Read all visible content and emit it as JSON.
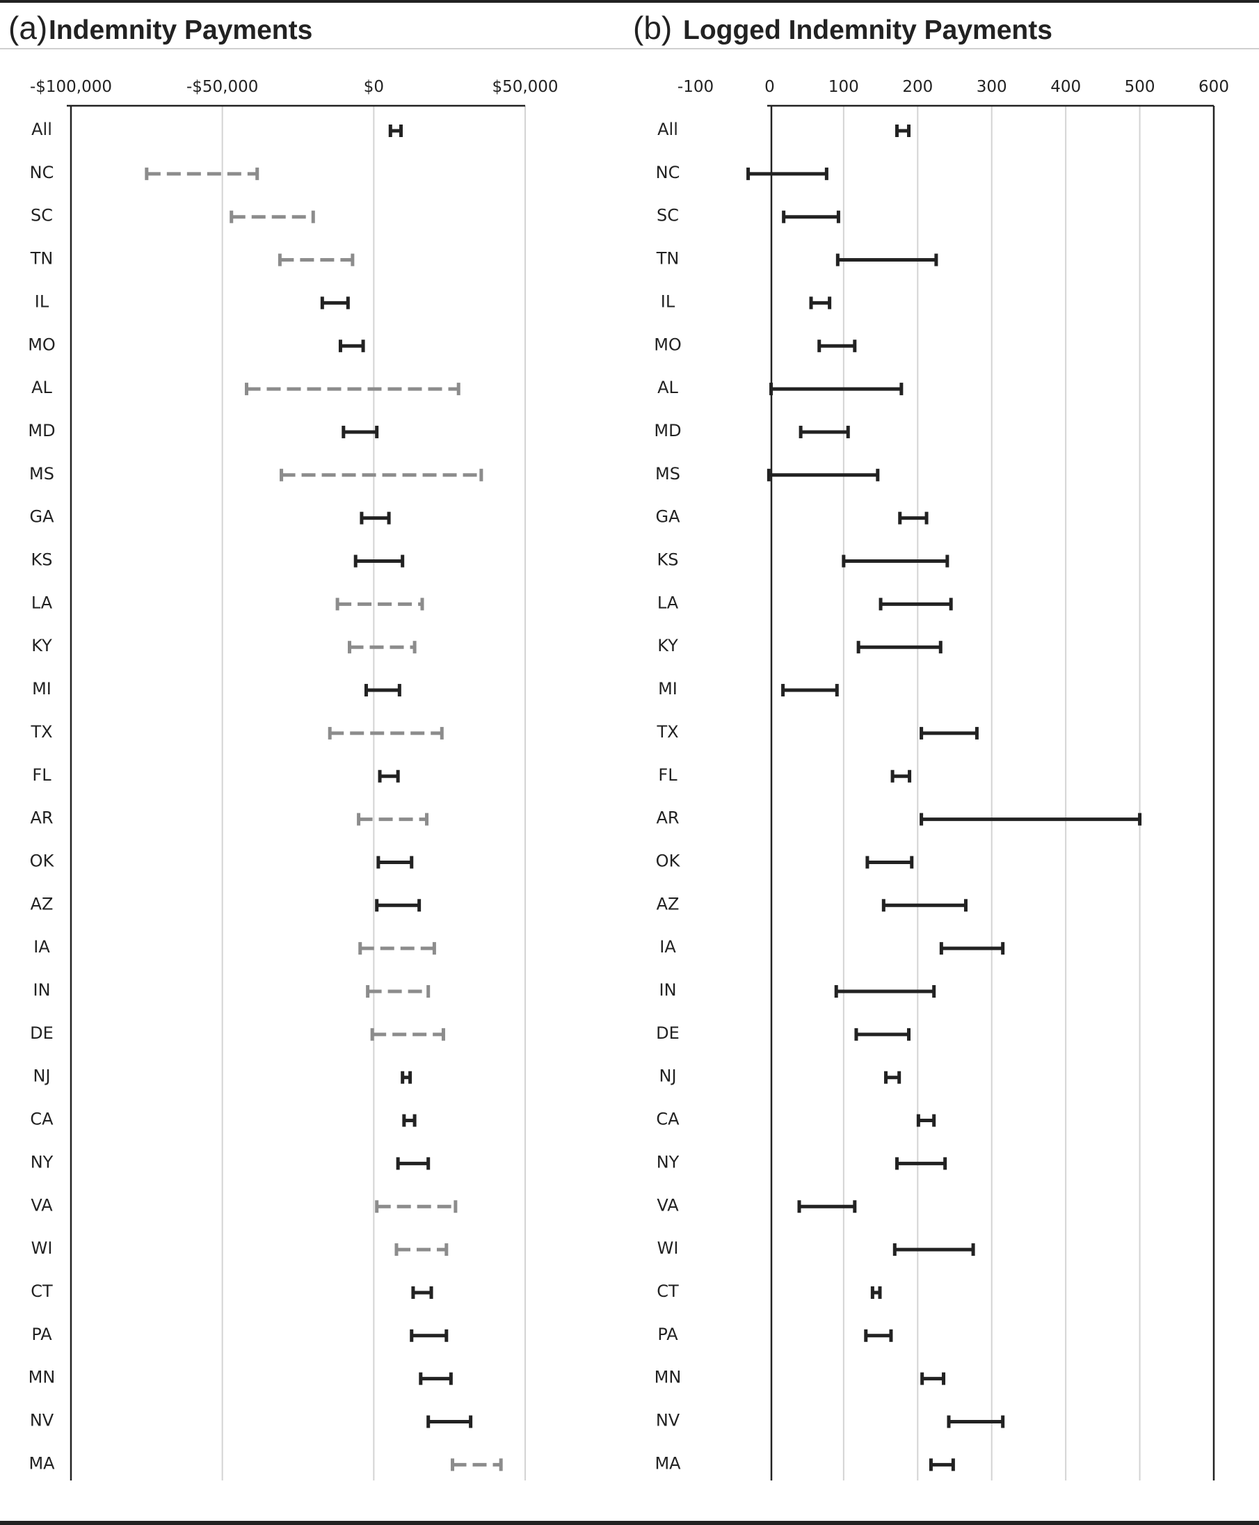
{
  "chart_data": [
    {
      "type": "interval",
      "panel_label": "(a)",
      "title": "Indemnity Payments",
      "x_ticks": [
        "-$100,000",
        "-$50,000",
        "$0",
        "$50,000"
      ],
      "x_tick_values": [
        -100000,
        -50000,
        0,
        50000
      ],
      "xlim": [
        -100000,
        50000
      ],
      "grid": "vertical",
      "styles": {
        "solid": "#222222",
        "dashed": "#8c8c8c"
      },
      "categories": [
        "All",
        "NC",
        "SC",
        "TN",
        "IL",
        "MO",
        "AL",
        "MD",
        "MS",
        "GA",
        "KS",
        "LA",
        "KY",
        "MI",
        "TX",
        "FL",
        "AR",
        "OK",
        "AZ",
        "IA",
        "IN",
        "DE",
        "NJ",
        "CA",
        "NY",
        "VA",
        "WI",
        "CT",
        "PA",
        "MN",
        "NV",
        "MA"
      ],
      "intervals": [
        {
          "low": 5500,
          "high": 9000,
          "style": "solid"
        },
        {
          "low": -75000,
          "high": -38500,
          "style": "dashed"
        },
        {
          "low": -47000,
          "high": -20000,
          "style": "dashed"
        },
        {
          "low": -31000,
          "high": -7000,
          "style": "dashed"
        },
        {
          "low": -17000,
          "high": -8500,
          "style": "solid"
        },
        {
          "low": -11000,
          "high": -3500,
          "style": "solid"
        },
        {
          "low": -42000,
          "high": 28000,
          "style": "dashed"
        },
        {
          "low": -10000,
          "high": 1000,
          "style": "solid"
        },
        {
          "low": -30500,
          "high": 35500,
          "style": "dashed"
        },
        {
          "low": -4000,
          "high": 5000,
          "style": "solid"
        },
        {
          "low": -6000,
          "high": 9500,
          "style": "solid"
        },
        {
          "low": -12000,
          "high": 16000,
          "style": "dashed"
        },
        {
          "low": -8000,
          "high": 13500,
          "style": "dashed"
        },
        {
          "low": -2500,
          "high": 8500,
          "style": "solid"
        },
        {
          "low": -14500,
          "high": 22500,
          "style": "dashed"
        },
        {
          "low": 2000,
          "high": 8000,
          "style": "solid"
        },
        {
          "low": -5000,
          "high": 17500,
          "style": "dashed"
        },
        {
          "low": 1500,
          "high": 12500,
          "style": "solid"
        },
        {
          "low": 1000,
          "high": 15000,
          "style": "solid"
        },
        {
          "low": -4500,
          "high": 20000,
          "style": "dashed"
        },
        {
          "low": -2000,
          "high": 18000,
          "style": "dashed"
        },
        {
          "low": -500,
          "high": 23000,
          "style": "dashed"
        },
        {
          "low": 9500,
          "high": 12000,
          "style": "solid"
        },
        {
          "low": 10000,
          "high": 13500,
          "style": "solid"
        },
        {
          "low": 8000,
          "high": 18000,
          "style": "solid"
        },
        {
          "low": 1000,
          "high": 27000,
          "style": "dashed"
        },
        {
          "low": 7500,
          "high": 24000,
          "style": "dashed"
        },
        {
          "low": 13000,
          "high": 19000,
          "style": "solid"
        },
        {
          "low": 12500,
          "high": 24000,
          "style": "solid"
        },
        {
          "low": 15500,
          "high": 25500,
          "style": "solid"
        },
        {
          "low": 18000,
          "high": 32000,
          "style": "solid"
        },
        {
          "low": 26000,
          "high": 42000,
          "style": "dashed"
        }
      ]
    },
    {
      "type": "interval",
      "panel_label": "(b)",
      "title": "Logged Indemnity Payments",
      "x_ticks": [
        "-100",
        "0",
        "100",
        "200",
        "300",
        "400",
        "500",
        "600"
      ],
      "x_tick_values": [
        -100,
        0,
        100,
        200,
        300,
        400,
        500,
        600
      ],
      "xlim": [
        -100,
        600
      ],
      "grid": "vertical",
      "styles": {
        "solid": "#222222"
      },
      "categories": [
        "All",
        "NC",
        "SC",
        "TN",
        "IL",
        "MO",
        "AL",
        "MD",
        "MS",
        "GA",
        "KS",
        "LA",
        "KY",
        "MI",
        "TX",
        "FL",
        "AR",
        "OK",
        "AZ",
        "IA",
        "IN",
        "DE",
        "NJ",
        "CA",
        "NY",
        "VA",
        "WI",
        "CT",
        "PA",
        "MN",
        "NV",
        "MA"
      ],
      "intervals": [
        {
          "low": 172,
          "high": 188,
          "style": "solid"
        },
        {
          "low": -29,
          "high": 77,
          "style": "solid"
        },
        {
          "low": 19,
          "high": 93,
          "style": "solid"
        },
        {
          "low": 92,
          "high": 225,
          "style": "solid"
        },
        {
          "low": 56,
          "high": 81,
          "style": "solid"
        },
        {
          "low": 67,
          "high": 115,
          "style": "solid"
        },
        {
          "low": 2,
          "high": 178,
          "style": "solid"
        },
        {
          "low": 42,
          "high": 106,
          "style": "solid"
        },
        {
          "low": -1,
          "high": 146,
          "style": "solid"
        },
        {
          "low": 176,
          "high": 212,
          "style": "solid"
        },
        {
          "low": 100,
          "high": 240,
          "style": "solid"
        },
        {
          "low": 150,
          "high": 245,
          "style": "solid"
        },
        {
          "low": 120,
          "high": 231,
          "style": "solid"
        },
        {
          "low": 18,
          "high": 91,
          "style": "solid"
        },
        {
          "low": 205,
          "high": 280,
          "style": "solid"
        },
        {
          "low": 166,
          "high": 189,
          "style": "solid"
        },
        {
          "low": 205,
          "high": 500,
          "style": "solid"
        },
        {
          "low": 132,
          "high": 192,
          "style": "solid"
        },
        {
          "low": 154,
          "high": 265,
          "style": "solid"
        },
        {
          "low": 232,
          "high": 315,
          "style": "solid"
        },
        {
          "low": 90,
          "high": 222,
          "style": "solid"
        },
        {
          "low": 117,
          "high": 188,
          "style": "solid"
        },
        {
          "low": 157,
          "high": 175,
          "style": "solid"
        },
        {
          "low": 201,
          "high": 222,
          "style": "solid"
        },
        {
          "low": 172,
          "high": 237,
          "style": "solid"
        },
        {
          "low": 40,
          "high": 115,
          "style": "solid"
        },
        {
          "low": 169,
          "high": 275,
          "style": "solid"
        },
        {
          "low": 139,
          "high": 149,
          "style": "solid"
        },
        {
          "low": 130,
          "high": 164,
          "style": "solid"
        },
        {
          "low": 206,
          "high": 235,
          "style": "solid"
        },
        {
          "low": 242,
          "high": 315,
          "style": "solid"
        },
        {
          "low": 218,
          "high": 248,
          "style": "solid"
        }
      ]
    }
  ]
}
